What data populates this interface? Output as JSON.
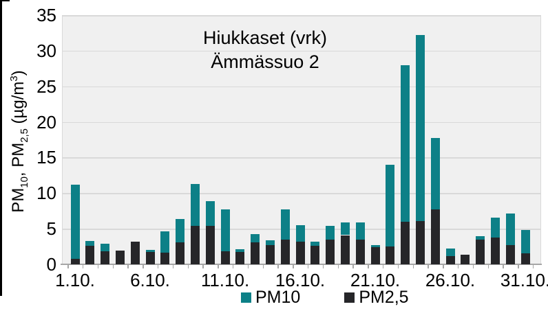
{
  "colors": {
    "pm10_teal": "#0d8087",
    "pm25_black": "#262629",
    "plot_background": "#f0f0f0",
    "gridline": "#d9d9d9",
    "axis": "#a6a6a6",
    "frame": "#000000"
  },
  "chart_data": {
    "type": "bar",
    "stacked": true,
    "title_line1": "Hiukkaset (vrk)",
    "title_line2": "Ämmässuo 2",
    "ylabel_parts": {
      "p1": "PM",
      "s1": "10",
      "p2": ", PM",
      "s2": "2,5",
      "p3": " (µg/m",
      "sup3": "3",
      "p4": ")"
    },
    "ylim": [
      0,
      35
    ],
    "y_ticks": [
      0,
      5,
      10,
      15,
      20,
      25,
      30,
      35
    ],
    "grid": true,
    "legend_position": "bottom",
    "categories": [
      "1.10.",
      "2.10.",
      "3.10.",
      "4.10.",
      "5.10.",
      "6.10.",
      "7.10.",
      "8.10.",
      "9.10.",
      "10.10.",
      "11.10.",
      "12.10.",
      "13.10.",
      "14.10.",
      "15.10.",
      "16.10.",
      "17.10.",
      "18.10.",
      "19.10.",
      "20.10.",
      "21.10.",
      "22.10.",
      "23.10.",
      "24.10.",
      "25.10.",
      "26.10.",
      "27.10.",
      "28.10.",
      "29.10.",
      "30.10.",
      "31.10."
    ],
    "x_axis_labels": [
      {
        "label": "1.10.",
        "day": 1
      },
      {
        "label": "6.10.",
        "day": 6
      },
      {
        "label": "11.10.",
        "day": 11
      },
      {
        "label": "16.10.",
        "day": 16
      },
      {
        "label": "21.10.",
        "day": 21
      },
      {
        "label": "26.10.",
        "day": 26
      },
      {
        "label": "31.10.",
        "day": 31
      }
    ],
    "series": [
      {
        "name": "PM2,5",
        "color": "#262629",
        "stack_order": "bottom",
        "values": [
          0.8,
          2.6,
          1.8,
          1.9,
          3.2,
          1.7,
          1.6,
          3.1,
          5.4,
          5.4,
          1.8,
          1.7,
          3.1,
          2.7,
          3.5,
          3.2,
          2.6,
          3.5,
          4.1,
          3.5,
          2.4,
          2.5,
          6.0,
          6.1,
          7.7,
          1.2,
          1.4,
          3.5,
          3.8,
          2.7,
          1.5
        ]
      },
      {
        "name": "PM10",
        "color": "#0d8087",
        "stack_order": "top",
        "values": [
          10.4,
          0.7,
          1.1,
          0,
          0,
          0.3,
          3.0,
          3.3,
          5.9,
          3.5,
          5.9,
          0.4,
          1.1,
          0.7,
          4.2,
          2.3,
          0.6,
          1.9,
          1.8,
          2.4,
          0.3,
          11.5,
          22.0,
          26.1,
          10.0,
          1.0,
          0,
          0.5,
          2.8,
          4.4,
          3.3
        ]
      }
    ],
    "legend": [
      {
        "label": "PM10",
        "color": "#0d8087"
      },
      {
        "label": "PM2,5",
        "color": "#262629"
      }
    ]
  }
}
